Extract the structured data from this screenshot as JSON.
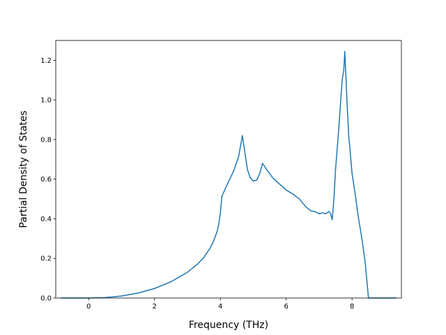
{
  "chart_data": {
    "type": "line",
    "xlabel": "Frequency (THz)",
    "ylabel": "Partial Density of States",
    "xlim": [
      -1.0,
      9.5
    ],
    "ylim": [
      0.0,
      1.3
    ],
    "xticks": [
      0,
      2,
      4,
      6,
      8
    ],
    "yticks": [
      0.0,
      0.2,
      0.4,
      0.6,
      0.8,
      1.0,
      1.2
    ],
    "grid": false,
    "series": [
      {
        "color": "#1f77b4",
        "x": [
          -0.85,
          -0.5,
          0.0,
          0.5,
          1.0,
          1.5,
          2.0,
          2.5,
          3.0,
          3.3,
          3.5,
          3.7,
          3.8,
          3.9,
          3.95,
          4.0,
          4.05,
          4.2,
          4.4,
          4.55,
          4.67,
          4.75,
          4.82,
          4.9,
          5.0,
          5.1,
          5.15,
          5.2,
          5.28,
          5.4,
          5.6,
          5.8,
          6.0,
          6.2,
          6.4,
          6.6,
          6.75,
          6.85,
          6.95,
          7.0,
          7.1,
          7.2,
          7.3,
          7.35,
          7.4,
          7.45,
          7.5,
          7.6,
          7.65,
          7.7,
          7.75,
          7.78,
          7.82,
          7.85,
          7.9,
          8.0,
          8.1,
          8.2,
          8.3,
          8.4,
          8.5,
          8.7,
          9.0,
          9.35
        ],
        "y": [
          0.0,
          0.0,
          0.0,
          0.002,
          0.01,
          0.025,
          0.048,
          0.082,
          0.13,
          0.17,
          0.205,
          0.255,
          0.29,
          0.335,
          0.37,
          0.43,
          0.515,
          0.57,
          0.64,
          0.71,
          0.82,
          0.73,
          0.65,
          0.61,
          0.59,
          0.595,
          0.61,
          0.63,
          0.68,
          0.65,
          0.605,
          0.575,
          0.545,
          0.525,
          0.5,
          0.46,
          0.44,
          0.437,
          0.43,
          0.425,
          0.43,
          0.425,
          0.437,
          0.425,
          0.395,
          0.5,
          0.65,
          0.86,
          0.98,
          1.1,
          1.15,
          1.245,
          1.1,
          0.98,
          0.82,
          0.63,
          0.52,
          0.4,
          0.3,
          0.18,
          0.0,
          0.0,
          0.0,
          0.0
        ]
      }
    ]
  }
}
